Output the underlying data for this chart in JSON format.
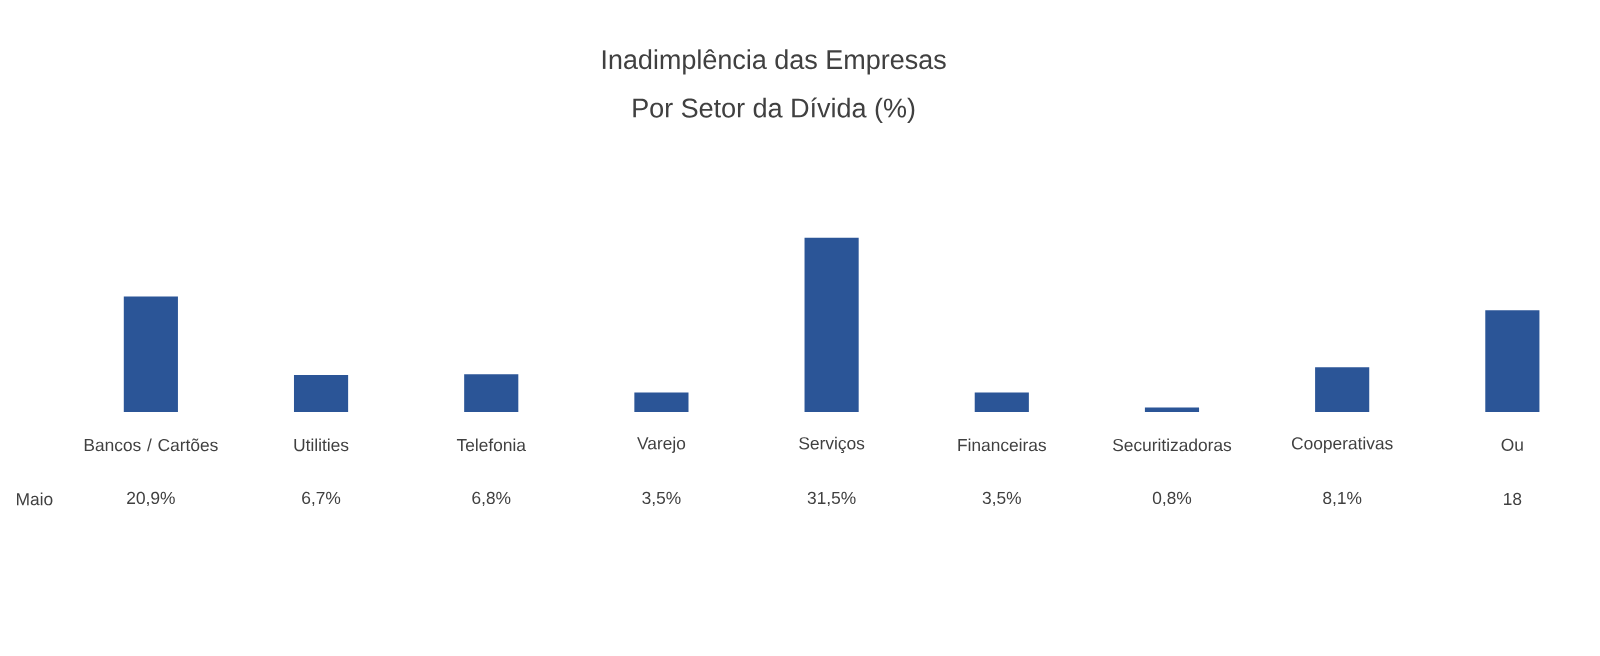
{
  "chart_data": {
    "type": "bar",
    "title": "Inadimplência das Empresas",
    "subtitle": "Por Setor da Dívida (%)",
    "categories": [
      "Bancos / Cartões",
      "Utilities",
      "Telefonia",
      "Varejo",
      "Serviços",
      "Financeiras",
      "Securitizadoras",
      "Cooperativas",
      "Ou"
    ],
    "series": [
      {
        "name": "Maio",
        "color": "#2b5597",
        "values": [
          20.9,
          6.7,
          6.8,
          3.5,
          31.5,
          3.5,
          0.8,
          8.1,
          18.4
        ],
        "value_labels": [
          "20,9%",
          "6,7%",
          "6,8%",
          "3,5%",
          "31,5%",
          "3,5%",
          "0,8%",
          "8,1%",
          "18"
        ]
      }
    ],
    "legend": false
  }
}
